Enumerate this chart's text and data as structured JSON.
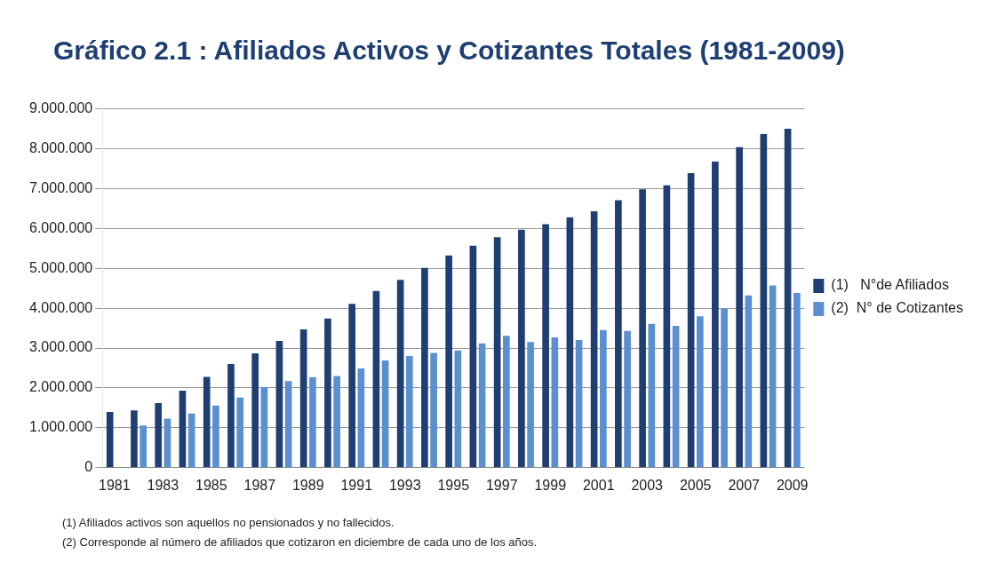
{
  "chart_data": {
    "type": "bar",
    "title": "Gráfico 2.1 : Afiliados Activos y Cotizantes Totales (1981-2009)",
    "categories": [
      "1981",
      null,
      "1983",
      null,
      "1985",
      null,
      "1987",
      null,
      "1989",
      null,
      "1991",
      null,
      "1993",
      null,
      "1995",
      null,
      "1997",
      null,
      "1999",
      null,
      "2001",
      null,
      "2003",
      null,
      "2005",
      null,
      "2007",
      null,
      "2009"
    ],
    "series": [
      {
        "name": "(1)   N°de Afiliados",
        "color": "#1f3f73",
        "values": [
          1400000,
          1440000,
          1620000,
          1930000,
          2280000,
          2600000,
          2870000,
          3180000,
          3470000,
          3740000,
          4110000,
          4430000,
          4710000,
          5010000,
          5320000,
          5570000,
          5780000,
          5970000,
          6110000,
          6280000,
          6430000,
          6710000,
          6980000,
          7080000,
          7390000,
          7680000,
          8040000,
          8370000,
          8500000
        ]
      },
      {
        "name": "(2)  N° de Cotizantes",
        "color": "#5b8fd0",
        "values": [
          null,
          1060000,
          1230000,
          1360000,
          1560000,
          1760000,
          2020000,
          2170000,
          2270000,
          2300000,
          2490000,
          2690000,
          2800000,
          2880000,
          2940000,
          3120000,
          3310000,
          3150000,
          3270000,
          3200000,
          3450000,
          3430000,
          3610000,
          3560000,
          3800000,
          3990000,
          4320000,
          4570000,
          4380000
        ]
      }
    ],
    "ylim": [
      0,
      9000000
    ],
    "yticks": [
      0,
      {
        "value": 1000000,
        "label": "1.000.000"
      },
      {
        "value": 2000000,
        "label": "2.000.000"
      },
      {
        "value": 3000000,
        "label": "3.000.000"
      },
      {
        "value": 4000000,
        "label": "4.000.000"
      },
      {
        "value": 5000000,
        "label": "5.000.000"
      },
      {
        "value": 6000000,
        "label": "6.000.000"
      },
      {
        "value": 7000000,
        "label": "7.000.000"
      },
      {
        "value": 8000000,
        "label": "8.000.000"
      },
      {
        "value": 9000000,
        "label": "9.000.000"
      }
    ],
    "grid": "y",
    "legend": "right",
    "annotations": [
      "(1)  Afiliados activos son aquellos no pensionados y no fallecidos.",
      "(2)  Corresponde al número de afiliados que cotizaron en diciembre de cada uno de los años."
    ]
  }
}
